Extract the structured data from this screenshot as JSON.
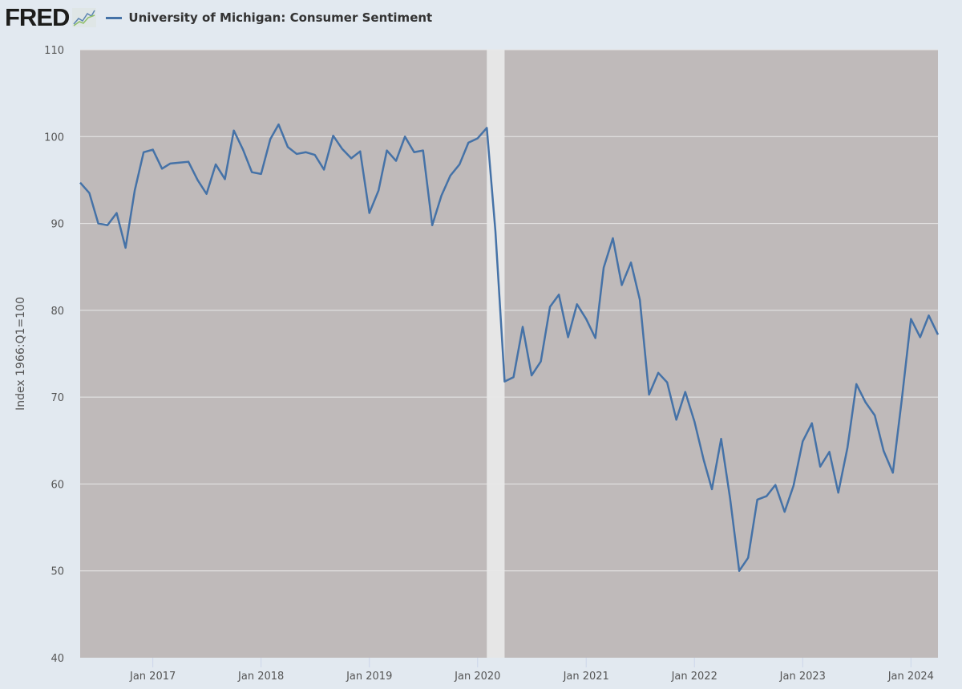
{
  "header": {
    "logo": "FRED",
    "logo_icon": "line-graph-icon"
  },
  "chart_data": {
    "type": "line",
    "title": "",
    "legend_position": "top-left",
    "xlabel": "",
    "ylabel": "Index 1966:Q1=100",
    "ylim": [
      40,
      110
    ],
    "yticks": [
      40,
      50,
      60,
      70,
      80,
      90,
      100,
      110
    ],
    "xlim": [
      "2016-05-01",
      "2024-04-01"
    ],
    "xticks": [
      {
        "date": "2017-01-01",
        "label": "Jan 2017"
      },
      {
        "date": "2018-01-01",
        "label": "Jan 2018"
      },
      {
        "date": "2019-01-01",
        "label": "Jan 2019"
      },
      {
        "date": "2020-01-01",
        "label": "Jan 2020"
      },
      {
        "date": "2021-01-01",
        "label": "Jan 2021"
      },
      {
        "date": "2022-01-01",
        "label": "Jan 2022"
      },
      {
        "date": "2023-01-01",
        "label": "Jan 2023"
      },
      {
        "date": "2024-01-01",
        "label": "Jan 2024"
      }
    ],
    "grid": true,
    "recession_shading": [
      {
        "start": "2020-02-01",
        "end": "2020-04-01"
      }
    ],
    "colors": {
      "line": "#4572a7",
      "plot_bg": "#bfbaba",
      "recession": "#e6e6e6",
      "page_bg": "#e2e9f0"
    },
    "series": [
      {
        "name": "University of Michigan: Consumer Sentiment",
        "start": "2016-05",
        "frequency": "monthly",
        "values": [
          94.7,
          93.5,
          90.0,
          89.8,
          91.2,
          87.2,
          93.8,
          98.2,
          98.5,
          96.3,
          96.9,
          97.0,
          97.1,
          95.0,
          93.4,
          96.8,
          95.1,
          100.7,
          98.5,
          95.9,
          95.7,
          99.7,
          101.4,
          98.8,
          98.0,
          98.2,
          97.9,
          96.2,
          100.1,
          98.6,
          97.5,
          98.3,
          91.2,
          93.8,
          98.4,
          97.2,
          100.0,
          98.2,
          98.4,
          89.8,
          93.2,
          95.5,
          96.8,
          99.3,
          99.8,
          101.0,
          89.1,
          71.8,
          72.3,
          78.1,
          72.5,
          74.1,
          80.4,
          81.8,
          76.9,
          80.7,
          79.0,
          76.8,
          84.9,
          88.3,
          82.9,
          85.5,
          81.2,
          70.3,
          72.8,
          71.7,
          67.4,
          70.6,
          67.2,
          62.8,
          59.4,
          65.2,
          58.4,
          50.0,
          51.5,
          58.2,
          58.6,
          59.9,
          56.8,
          59.8,
          64.9,
          67.0,
          62.0,
          63.7,
          59.0,
          64.2,
          71.5,
          69.4,
          67.9,
          63.8,
          61.3,
          69.7,
          79.0,
          76.9,
          79.4,
          77.2
        ]
      }
    ]
  }
}
